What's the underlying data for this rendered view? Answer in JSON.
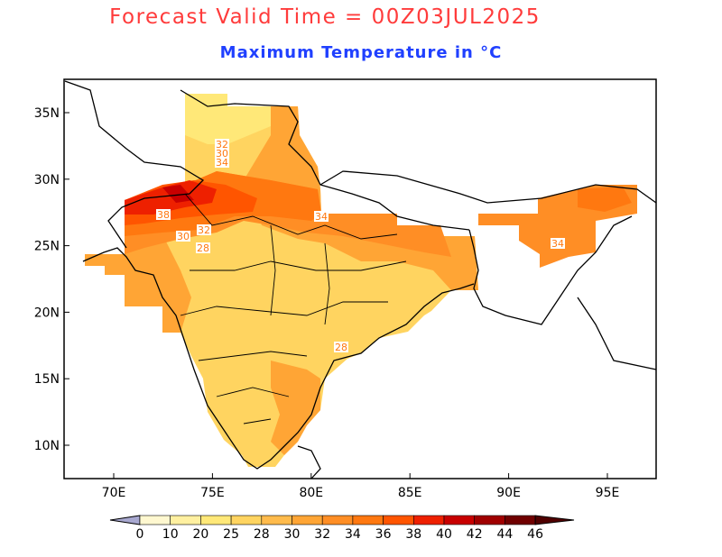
{
  "title": "Forecast Valid Time = 00Z03JUL2025",
  "subtitle": "Maximum Temperature in °C",
  "lon_labels": [
    "70E",
    "75E",
    "80E",
    "85E",
    "90E",
    "95E"
  ],
  "lat_labels": [
    "35N",
    "30N",
    "25N",
    "20N",
    "15N",
    "10N"
  ],
  "contour_labels": [
    "32",
    "30",
    "34",
    "38",
    "30",
    "32",
    "28",
    "34",
    "34",
    "28"
  ],
  "colorbar": {
    "labels": [
      "0",
      "10",
      "20",
      "25",
      "28",
      "30",
      "32",
      "34",
      "36",
      "38",
      "40",
      "42",
      "44",
      "46"
    ],
    "below_color": "#a8a8d0",
    "colors": [
      "#fff8d0",
      "#fff0a0",
      "#ffe878",
      "#ffd460",
      "#ffbb4c",
      "#ffa535",
      "#ff8e25",
      "#ff7810",
      "#ff5500",
      "#ee2000",
      "#c80000",
      "#a00000",
      "#700000"
    ],
    "above_color": "#500000"
  }
}
